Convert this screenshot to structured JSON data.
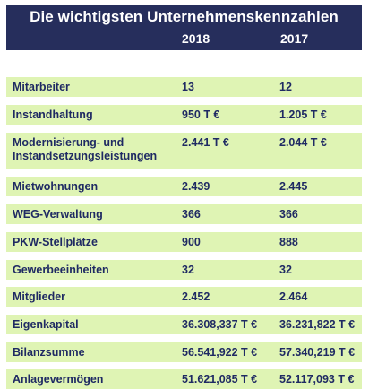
{
  "table": {
    "title": "Die wichtigsten Unternehmenskennzahlen",
    "year_a": "2018",
    "year_b": "2017",
    "rows": [
      {
        "label": "Mitarbeiter",
        "v2018": "13",
        "v2017": "12"
      },
      {
        "label": "Instandhaltung",
        "v2018": "950 T €",
        "v2017": "1.205 T €"
      },
      {
        "label_line1": "Modernisierung- und",
        "label_line2": "Instandsetzungsleistungen",
        "v2018": "2.441 T €",
        "v2017": "2.044 T €"
      },
      {
        "label": "Mietwohnungen",
        "v2018": "2.439",
        "v2017": "2.445"
      },
      {
        "label": "WEG-Verwaltung",
        "v2018": "366",
        "v2017": "366"
      },
      {
        "label": "PKW-Stellplätze",
        "v2018": "900",
        "v2017": "888"
      },
      {
        "label": "Gewerbeeinheiten",
        "v2018": "32",
        "v2017": "32"
      },
      {
        "label": "Mitglieder",
        "v2018": "2.452",
        "v2017": "2.464"
      },
      {
        "label": "Eigenkapital",
        "v2018": "36.308,337 T €",
        "v2017": "36.231,822 T €"
      },
      {
        "label": "Bilanzsumme",
        "v2018": "56.541,922 T €",
        "v2017": "57.340,219 T €"
      },
      {
        "label": "Anlagevermögen",
        "v2018": "51.621,085 T €",
        "v2017": "52.117,093 T €"
      }
    ]
  },
  "colors": {
    "header_bg": "#262e5c",
    "row_bg": "#dff4b4",
    "row_text": "#1f2a63"
  }
}
